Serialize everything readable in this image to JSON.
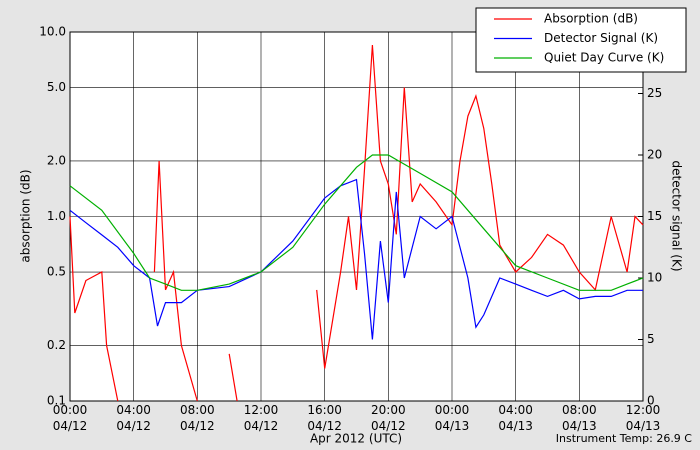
{
  "chart_data": {
    "type": "line",
    "xlabel": "Apr 2012 (UTC)",
    "ylabel": "absorption (dB)",
    "y2label": "detector signal (K)",
    "annotation": "Instrument Temp: 26.9 C",
    "xlim": [
      0,
      36
    ],
    "xticks": [
      {
        "value": 0,
        "label": "00:00\n04/12"
      },
      {
        "value": 4,
        "label": "04:00\n04/12"
      },
      {
        "value": 8,
        "label": "08:00\n04/12"
      },
      {
        "value": 12,
        "label": "12:00\n04/12"
      },
      {
        "value": 16,
        "label": "16:00\n04/12"
      },
      {
        "value": 20,
        "label": "20:00\n04/12"
      },
      {
        "value": 24,
        "label": "00:00\n04/13"
      },
      {
        "value": 28,
        "label": "04:00\n04/13"
      },
      {
        "value": 32,
        "label": "08:00\n04/13"
      },
      {
        "value": 36,
        "label": "12:00\n04/13"
      }
    ],
    "ylim": [
      0.1,
      10
    ],
    "log_y": true,
    "yticks": [
      0.1,
      0.2,
      0.5,
      {
        "value": 1,
        "label": "1.0"
      },
      {
        "value": 2,
        "label": "2.0"
      },
      {
        "value": 5,
        "label": "5.0"
      },
      {
        "value": 10,
        "label": "10.0"
      }
    ],
    "y2lim": [
      0,
      30
    ],
    "y2ticks": [
      0,
      5,
      10,
      15,
      20,
      25
    ],
    "grid": true,
    "legend": "upper right",
    "series": [
      {
        "name": "Absorption (dB)",
        "color": "#ff0000",
        "x": [
          0,
          0.3,
          1,
          2,
          2.3,
          3,
          3.5,
          5.3,
          5.6,
          6,
          6.5,
          7,
          8,
          9,
          10,
          10.5,
          12,
          15.5,
          16,
          17,
          17.5,
          18,
          18.5,
          19,
          19.5,
          20,
          20.5,
          21,
          21.5,
          22,
          23,
          24,
          24.5,
          25,
          25.5,
          26,
          26.5,
          27,
          28,
          29,
          30,
          31,
          32,
          33,
          34,
          35,
          35.5,
          36
        ],
        "values": [
          1.0,
          0.3,
          0.45,
          0.5,
          0.2,
          0.1,
          null,
          0.5,
          2.0,
          0.4,
          0.5,
          0.2,
          0.1,
          null,
          0.18,
          0.1,
          null,
          0.4,
          0.15,
          0.5,
          1.0,
          0.4,
          1.8,
          8.5,
          2.0,
          1.5,
          0.8,
          5.0,
          1.2,
          1.5,
          1.2,
          0.9,
          2.0,
          3.5,
          4.5,
          3.0,
          1.5,
          0.7,
          0.5,
          0.6,
          0.8,
          0.7,
          0.5,
          0.4,
          1.0,
          0.5,
          1.0,
          0.9
        ]
      },
      {
        "name": "Detector Signal (K)",
        "color": "#0000ff",
        "axis": "y2",
        "x": [
          0,
          1,
          2,
          3,
          4,
          5,
          5.5,
          6,
          7,
          8,
          10,
          12,
          14,
          16,
          17,
          18,
          18.5,
          19,
          19.5,
          20,
          20.5,
          21,
          22,
          23,
          24,
          25,
          25.5,
          26,
          27,
          28,
          29,
          30,
          31,
          32,
          33,
          34,
          35,
          36
        ],
        "values": [
          15.5,
          14.5,
          13.5,
          12.5,
          11,
          10,
          6.1,
          8,
          8,
          9,
          9.3,
          10.5,
          13,
          16.5,
          17.5,
          18,
          12,
          5,
          13,
          8,
          17,
          10,
          15,
          14,
          15,
          10,
          6,
          7,
          10,
          9.5,
          9,
          8.5,
          9,
          8.3,
          8.5,
          8.5,
          9,
          9
        ]
      },
      {
        "name": "Quiet Day Curve (K)",
        "color": "#00b000",
        "axis": "y2",
        "x": [
          0,
          2,
          4,
          5,
          6,
          7,
          8,
          10,
          12,
          14,
          16,
          18,
          19,
          20,
          22,
          24,
          26,
          28,
          30,
          32,
          34,
          35,
          36
        ],
        "values": [
          17.5,
          15.5,
          12,
          10,
          9.5,
          9,
          9,
          9.5,
          10.5,
          12.5,
          16,
          19,
          20,
          20,
          18.5,
          17,
          14,
          11,
          10,
          9,
          9,
          9.5,
          10
        ]
      }
    ]
  }
}
